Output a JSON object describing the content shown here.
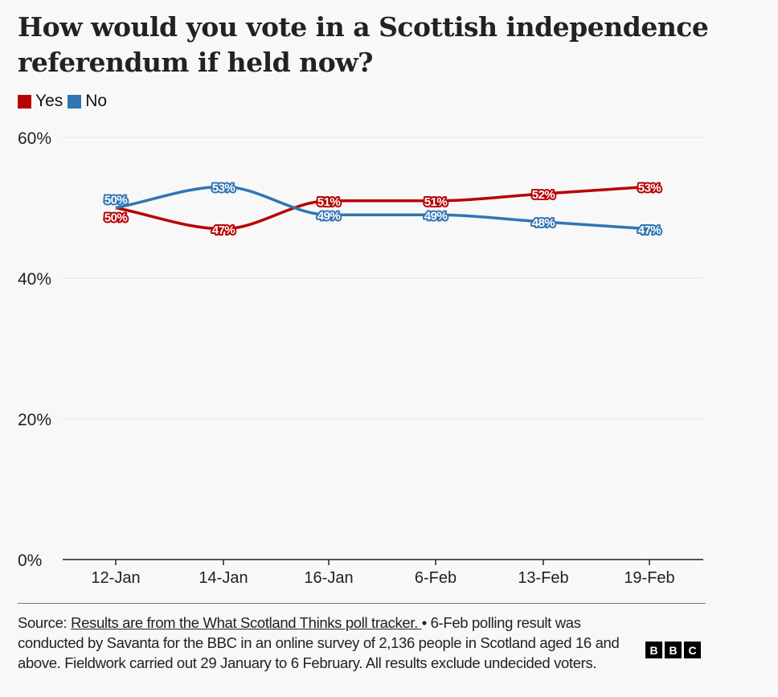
{
  "chart_data": {
    "type": "line",
    "title": "How would you vote in a Scottish independence referendum if held now?",
    "categories": [
      "12-Jan",
      "14-Jan",
      "16-Jan",
      "6-Feb",
      "13-Feb",
      "19-Feb"
    ],
    "series": [
      {
        "name": "Yes",
        "color": "#b80000",
        "values": [
          50,
          47,
          51,
          51,
          52,
          53
        ]
      },
      {
        "name": "No",
        "color": "#3275b3",
        "values": [
          50,
          53,
          49,
          49,
          48,
          47
        ]
      }
    ],
    "ylim": [
      0,
      60
    ],
    "yticks": [
      0,
      20,
      40,
      60
    ],
    "ytick_labels": [
      "0%",
      "20%",
      "40%",
      "60%"
    ],
    "value_suffix": "%",
    "grid": true,
    "legend": "top-left"
  },
  "footer": {
    "source_prefix": "Source: ",
    "source_link": "Results are from the What Scotland Thinks poll tracker. ",
    "note": "• 6-Feb polling result was conducted by Savanta for the BBC in an online survey of 2,136 people in Scotland aged 16 and above. Fieldwork carried out 29 January to 6 February. All results exclude undecided voters.",
    "logo": [
      "B",
      "B",
      "C"
    ]
  }
}
